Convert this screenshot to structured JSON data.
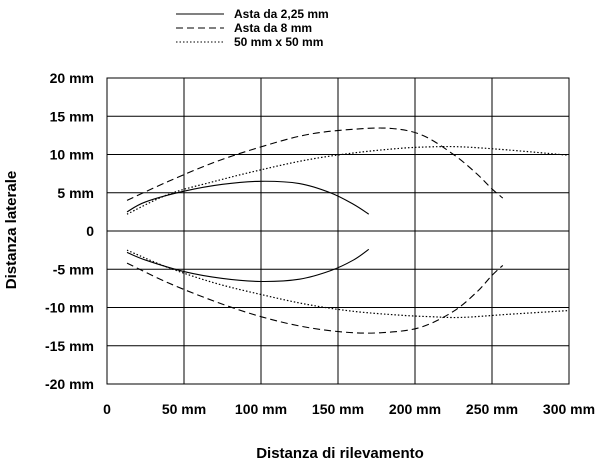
{
  "chart_data": {
    "type": "line",
    "xlabel": "Distanza di rilevamento",
    "ylabel": "Distanza laterale",
    "xlim": [
      0,
      300
    ],
    "ylim": [
      -20,
      20
    ],
    "grid": true,
    "legend_position": "top-left",
    "x_ticks": [
      {
        "value": 0,
        "label": "0"
      },
      {
        "value": 50,
        "label": "50 mm"
      },
      {
        "value": 100,
        "label": "100 mm"
      },
      {
        "value": 150,
        "label": "150 mm"
      },
      {
        "value": 200,
        "label": "200 mm"
      },
      {
        "value": 250,
        "label": "250 mm"
      },
      {
        "value": 300,
        "label": "300 mm"
      }
    ],
    "y_ticks": [
      {
        "value": 20,
        "label": "20 mm"
      },
      {
        "value": 15,
        "label": "15 mm"
      },
      {
        "value": 10,
        "label": "10 mm"
      },
      {
        "value": 5,
        "label": "5 mm"
      },
      {
        "value": 0,
        "label": "0"
      },
      {
        "value": -5,
        "label": "-5 mm"
      },
      {
        "value": -10,
        "label": "-10 mm"
      },
      {
        "value": -15,
        "label": "-15 mm"
      },
      {
        "value": -20,
        "label": "-20 mm"
      }
    ],
    "series": [
      {
        "name": "Asta da 2,25 mm",
        "style": "solid",
        "color": "#000000",
        "upper": [
          [
            13,
            2.5
          ],
          [
            25,
            3.8
          ],
          [
            50,
            5.2
          ],
          [
            75,
            6.1
          ],
          [
            100,
            6.5
          ],
          [
            125,
            6.2
          ],
          [
            145,
            5.0
          ],
          [
            160,
            3.5
          ],
          [
            170,
            2.2
          ]
        ],
        "lower": [
          [
            13,
            -2.8
          ],
          [
            25,
            -3.8
          ],
          [
            50,
            -5.3
          ],
          [
            75,
            -6.2
          ],
          [
            100,
            -6.6
          ],
          [
            125,
            -6.3
          ],
          [
            145,
            -5.2
          ],
          [
            160,
            -3.8
          ],
          [
            170,
            -2.4
          ]
        ]
      },
      {
        "name": "Asta da 8 mm",
        "style": "dashed",
        "color": "#000000",
        "upper": [
          [
            13,
            4.0
          ],
          [
            40,
            6.5
          ],
          [
            70,
            9.0
          ],
          [
            100,
            11.0
          ],
          [
            130,
            12.6
          ],
          [
            160,
            13.3
          ],
          [
            185,
            13.4
          ],
          [
            205,
            12.5
          ],
          [
            225,
            10.0
          ],
          [
            240,
            7.5
          ],
          [
            250,
            5.5
          ],
          [
            257,
            4.3
          ]
        ],
        "lower": [
          [
            13,
            -4.2
          ],
          [
            40,
            -6.8
          ],
          [
            70,
            -9.2
          ],
          [
            100,
            -11.2
          ],
          [
            130,
            -12.6
          ],
          [
            160,
            -13.3
          ],
          [
            185,
            -13.2
          ],
          [
            205,
            -12.5
          ],
          [
            225,
            -10.5
          ],
          [
            240,
            -8.0
          ],
          [
            250,
            -5.8
          ],
          [
            257,
            -4.5
          ]
        ]
      },
      {
        "name": "50 mm x 50 mm",
        "style": "dotted",
        "color": "#000000",
        "upper": [
          [
            13,
            2.2
          ],
          [
            40,
            4.8
          ],
          [
            70,
            6.5
          ],
          [
            100,
            8.0
          ],
          [
            130,
            9.3
          ],
          [
            160,
            10.2
          ],
          [
            190,
            10.8
          ],
          [
            210,
            11.0
          ],
          [
            230,
            11.0
          ],
          [
            260,
            10.6
          ],
          [
            300,
            9.9
          ]
        ],
        "lower": [
          [
            13,
            -2.5
          ],
          [
            40,
            -4.8
          ],
          [
            70,
            -6.8
          ],
          [
            100,
            -8.3
          ],
          [
            130,
            -9.6
          ],
          [
            160,
            -10.5
          ],
          [
            190,
            -11.0
          ],
          [
            210,
            -11.2
          ],
          [
            230,
            -11.3
          ],
          [
            260,
            -10.9
          ],
          [
            300,
            -10.4
          ]
        ]
      }
    ]
  }
}
